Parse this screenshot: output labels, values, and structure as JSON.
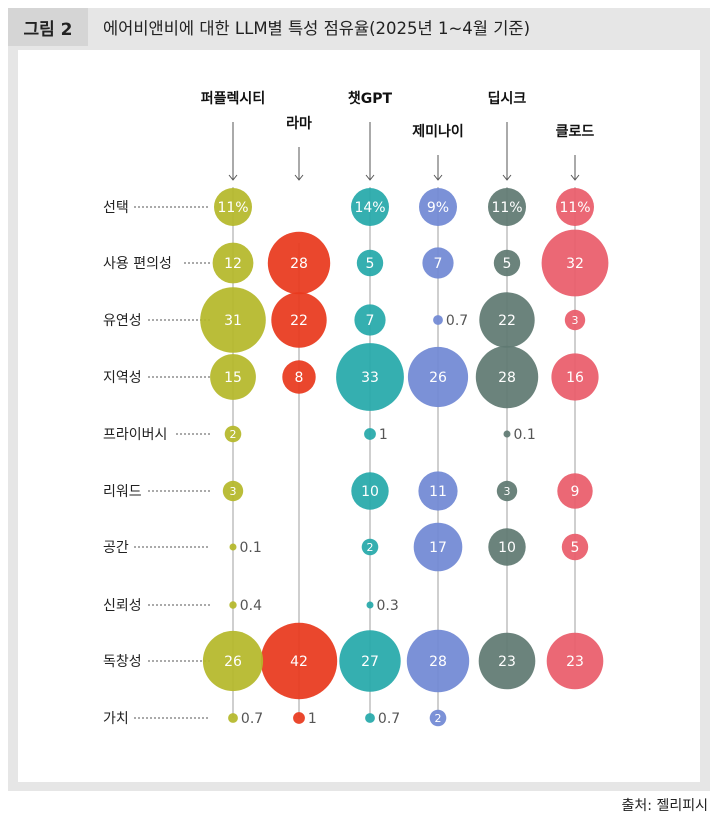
{
  "figure": {
    "label": "그림 2",
    "title": "에어비앤비에 대한 LLM별 특성 점유율(2025년 1~4월 기준)",
    "source": "출처: 젤리피시"
  },
  "chart_data": {
    "type": "bubble",
    "value_format": "integer values are counts, first row shows percent",
    "models": [
      {
        "name": "퍼플렉시티",
        "color": "#b5b82a"
      },
      {
        "name": "라마",
        "color": "#e8391d"
      },
      {
        "name": "챗GPT",
        "color": "#26a9aa"
      },
      {
        "name": "제미나이",
        "color": "#7189d4"
      },
      {
        "name": "딥시크",
        "color": "#607a72"
      },
      {
        "name": "클로드",
        "color": "#e95c6b"
      }
    ],
    "attributes": [
      "선택",
      "사용 편의성",
      "유연성",
      "지역성",
      "프라이버시",
      "리워드",
      "공간",
      "신뢰성",
      "독창성",
      "가치"
    ],
    "values": [
      [
        "11%",
        "12",
        "31",
        "15",
        "2",
        "3",
        "0.1",
        "0.4",
        "26",
        "0.7"
      ],
      [
        null,
        "28",
        "22",
        "8",
        null,
        null,
        null,
        null,
        "42",
        "1"
      ],
      [
        "14%",
        "5",
        "7",
        "33",
        "1",
        "10",
        "2",
        "0.3",
        "27",
        "0.7"
      ],
      [
        "9%",
        "7",
        "0.7",
        "26",
        null,
        "11",
        "17",
        null,
        "28",
        "2"
      ],
      [
        "11%",
        "5",
        "22",
        "28",
        "0.1",
        "3",
        "10",
        null,
        "23",
        null
      ],
      [
        "11%",
        "32",
        "3",
        "16",
        null,
        "9",
        "5",
        null,
        "23",
        null
      ]
    ]
  }
}
